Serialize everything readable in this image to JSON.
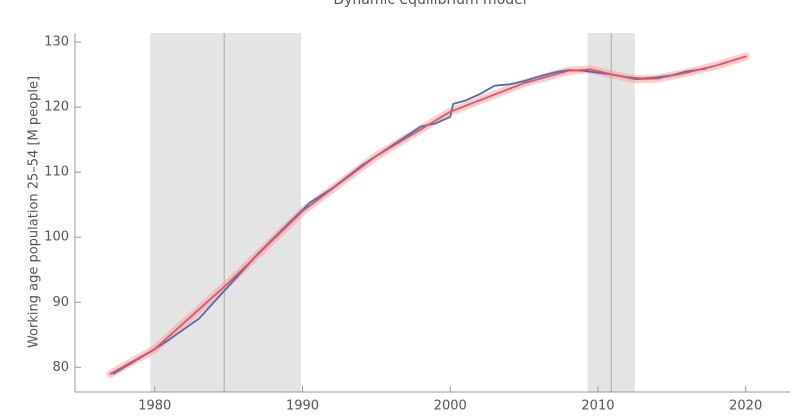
{
  "chart_data": {
    "type": "line",
    "title": "Dynamic equilibrium model",
    "y_label": "Working age population 25–54 [M people]",
    "xlim": [
      1974.6,
      2023
    ],
    "ylim": [
      76.2,
      131.4
    ],
    "xticks": [
      1980,
      1990,
      2000,
      2010,
      2020
    ],
    "yticks": [
      80,
      90,
      100,
      110,
      120,
      130
    ],
    "shaded_regions": [
      {
        "start": 1979.7,
        "end": 1989.9,
        "center": 1984.7
      },
      {
        "start": 2009.3,
        "end": 2012.5,
        "center": 2010.9
      }
    ],
    "shade_color": "#e4e4e4",
    "series": [
      {
        "color": "#ff9a9a",
        "band": true,
        "x": [
          1977,
          1980,
          1985,
          1990,
          1995,
          2000,
          2005,
          2008,
          2009.5,
          2011,
          2012.5,
          2014,
          2016,
          2018,
          2020
        ],
        "values": [
          79,
          82.8,
          93,
          104,
          112.5,
          119.3,
          123.7,
          125.6,
          125.8,
          125,
          124.3,
          124.4,
          125.3,
          126.4,
          127.8
        ]
      },
      {
        "color": "#4a6fb5",
        "x": [
          1977.2,
          1980,
          1981,
          1983,
          1985,
          1987,
          1989,
          1990,
          1990.5,
          1992,
          1994,
          1996,
          1998,
          1999,
          2000,
          2000.2,
          2001,
          2002,
          2003,
          2004,
          2005,
          2006,
          2007,
          2008,
          2009,
          2010,
          2011,
          2012,
          2013,
          2014,
          2015,
          2016,
          2017.3
        ],
        "values": [
          79,
          82.8,
          84.3,
          87.5,
          92.5,
          97.5,
          102,
          104.2,
          105.3,
          107.5,
          111,
          114,
          117,
          117.5,
          118.5,
          120.5,
          121,
          122,
          123.3,
          123.5,
          124,
          124.7,
          125.3,
          125.7,
          125.6,
          125.3,
          125,
          124.6,
          124.4,
          124.6,
          124.9,
          125.5,
          125.9
        ]
      },
      {
        "color": "#e05565",
        "x": [
          1977,
          1980,
          1985,
          1990,
          1995,
          2000,
          2005,
          2008,
          2009.5,
          2011,
          2012.5,
          2014,
          2016,
          2018,
          2020
        ],
        "values": [
          79,
          82.8,
          93,
          104,
          112.5,
          119.3,
          123.7,
          125.6,
          125.8,
          125,
          124.3,
          124.4,
          125.3,
          126.4,
          127.8
        ]
      }
    ]
  }
}
